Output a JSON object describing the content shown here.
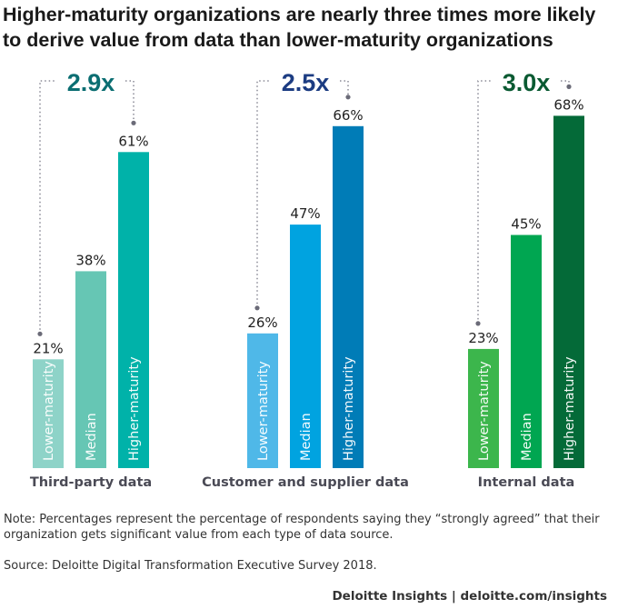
{
  "chart_data": {
    "type": "bar",
    "title": "Higher-maturity organizations are nearly three times more likely to derive value from data than lower-maturity organizations",
    "ylim": [
      0,
      100
    ],
    "grid": false,
    "unit": "%",
    "bar_labels": [
      "Lower-maturity",
      "Median",
      "Higher-maturity"
    ],
    "groups": [
      {
        "category": "Third-party data",
        "values": [
          21,
          38,
          61
        ],
        "multiplier": "2.9x",
        "multiplier_color": "#0b6e72",
        "colors": [
          "#8ed3c8",
          "#66c6b4",
          "#00b2a9"
        ]
      },
      {
        "category": "Customer and supplier data",
        "values": [
          26,
          47,
          66
        ],
        "multiplier": "2.5x",
        "multiplier_color": "#1c3c82",
        "colors": [
          "#4fb8e8",
          "#00a3e0",
          "#007cb7"
        ]
      },
      {
        "category": "Internal data",
        "values": [
          23,
          45,
          68
        ],
        "multiplier": "3.0x",
        "multiplier_color": "#0a5a32",
        "colors": [
          "#3cb64c",
          "#00a651",
          "#046a38"
        ]
      }
    ]
  },
  "note": "Note: Percentages represent the percentage of respondents saying they “strongly agreed” that their organization gets significant value from each type of data source.",
  "source": "Source: Deloitte Digital Transformation Executive Survey 2018.",
  "footer": "Deloitte Insights | deloitte.com/insights"
}
